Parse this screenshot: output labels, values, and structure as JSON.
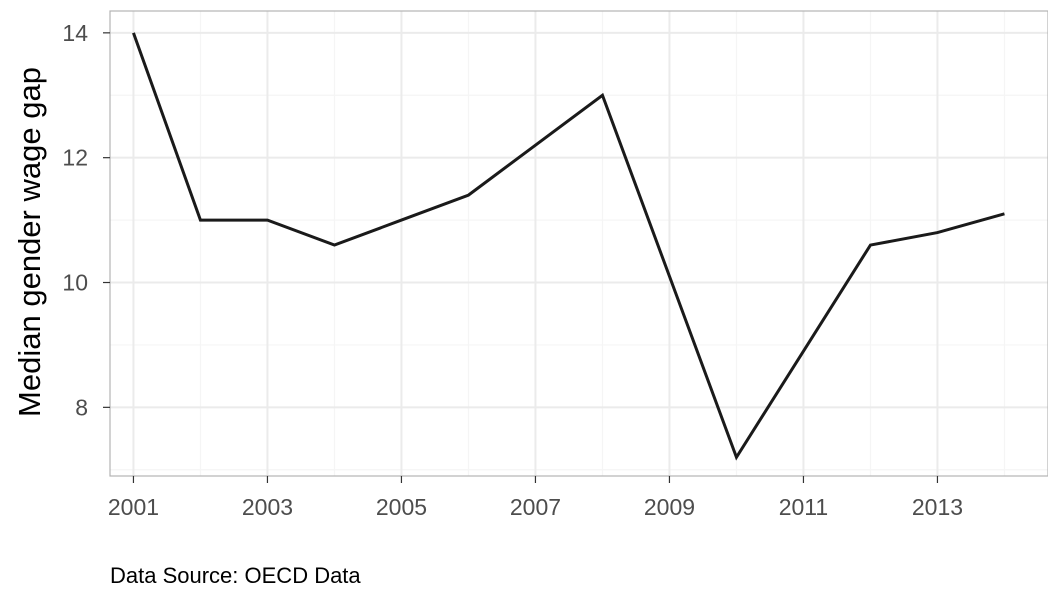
{
  "chart_data": {
    "type": "line",
    "title": "",
    "xlabel": "",
    "ylabel": "Median gender wage gap",
    "caption": "Data Source: OECD Data",
    "x": [
      2001,
      2002,
      2003,
      2004,
      2005,
      2006,
      2007,
      2008,
      2009,
      2010,
      2011,
      2012,
      2013,
      2014
    ],
    "series": [
      {
        "values": [
          14.0,
          11.0,
          11.0,
          10.6,
          11.0,
          11.4,
          12.2,
          13.0,
          10.1,
          7.2,
          8.9,
          10.6,
          10.8,
          11.1
        ]
      }
    ],
    "xticks": [
      "2001",
      "2003",
      "2005",
      "2007",
      "2009",
      "2011",
      "2013"
    ],
    "yticks": [
      "8",
      "10",
      "12",
      "14"
    ],
    "xlim": [
      2000.65,
      2014.65
    ],
    "ylim": [
      6.9,
      14.35
    ],
    "grid": true,
    "legend": "none",
    "colors": {
      "line": "#1a1a1a",
      "grid_major": "#ebebeb",
      "grid_minor": "#f5f5f5",
      "panel_border": "#b3b3b3",
      "tick_text": "#4d4d4d"
    }
  }
}
